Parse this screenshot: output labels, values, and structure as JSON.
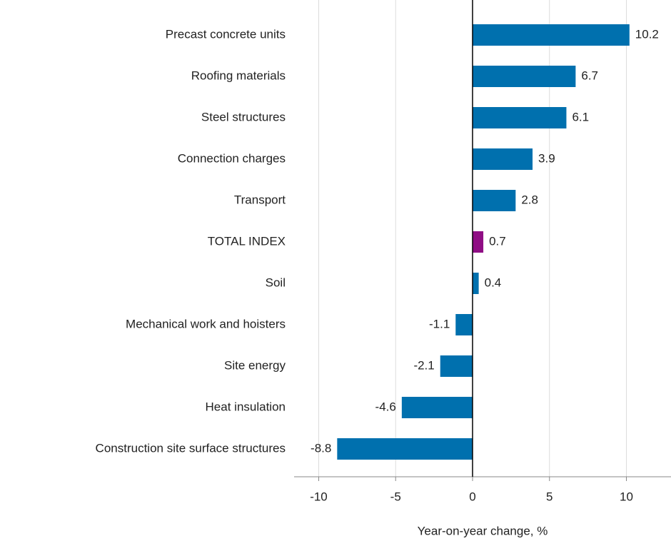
{
  "chart_data": {
    "type": "bar",
    "orientation": "horizontal",
    "x_label": "Year-on-year change, %",
    "categories": [
      "Precast concrete units",
      "Roofing materials",
      "Steel structures",
      "Connection charges",
      "Transport",
      "TOTAL INDEX",
      "Soil",
      "Mechanical work and hoisters",
      "Site energy",
      "Heat insulation",
      "Construction site surface structures"
    ],
    "values": [
      10.2,
      6.7,
      6.1,
      3.9,
      2.8,
      0.7,
      0.4,
      -1.1,
      -2.1,
      -4.6,
      -8.8
    ],
    "colors": [
      "#0070ae",
      "#0070ae",
      "#0070ae",
      "#0070ae",
      "#0070ae",
      "#8f0d84",
      "#0070ae",
      "#0070ae",
      "#0070ae",
      "#0070ae",
      "#0070ae"
    ],
    "xlim": [
      -11.6,
      12.9
    ],
    "xticks": [
      -10,
      -5,
      0,
      5,
      10
    ],
    "grid": true
  }
}
